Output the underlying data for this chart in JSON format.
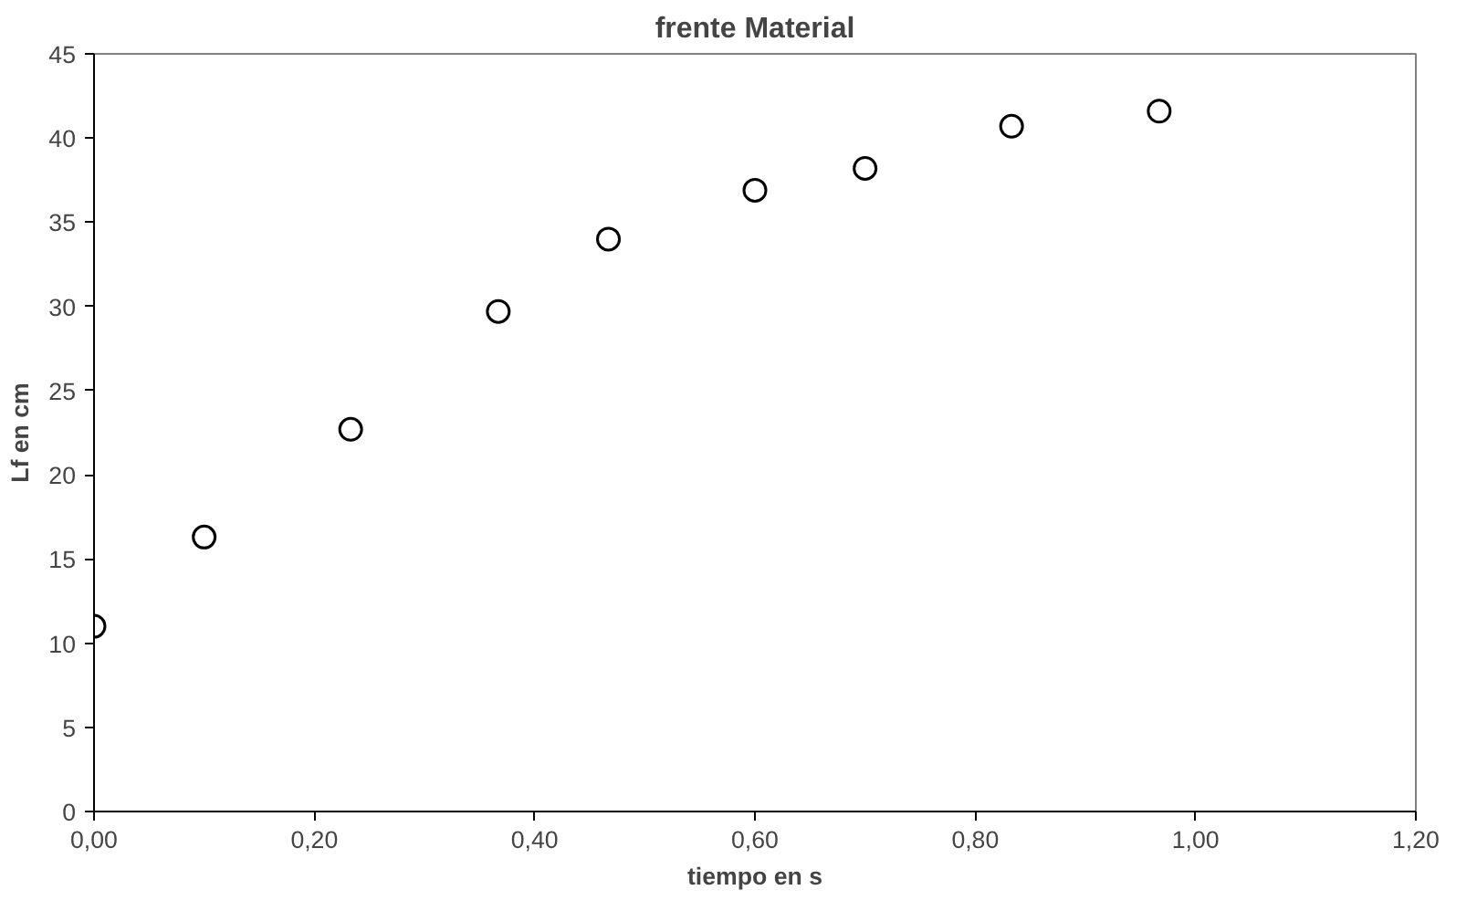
{
  "chart_data": {
    "type": "scatter",
    "title": "frente Material",
    "xlabel": "tiempo en s",
    "ylabel": "Lf en cm",
    "x": [
      0.0,
      0.1,
      0.233,
      0.367,
      0.467,
      0.6,
      0.7,
      0.833,
      0.967
    ],
    "series": [
      {
        "color": "#000000",
        "values": [
          11.0,
          16.3,
          22.7,
          29.7,
          34.0,
          36.9,
          38.2,
          40.7,
          41.6
        ]
      }
    ],
    "marker": "circle",
    "grid": false,
    "xlim": [
      0,
      1.2
    ],
    "ylim": [
      0,
      45
    ],
    "xticks": [
      {
        "value": 0,
        "label": "0,00"
      },
      {
        "value": 0.2,
        "label": "0,20"
      },
      {
        "value": 0.4,
        "label": "0,40"
      },
      {
        "value": 0.6,
        "label": "0,60"
      },
      {
        "value": 0.8,
        "label": "0,80"
      },
      {
        "value": 1.0,
        "label": "1,00"
      },
      {
        "value": 1.2,
        "label": "1,20"
      }
    ],
    "yticks": [
      0,
      5,
      10,
      15,
      20,
      25,
      30,
      35,
      40,
      45
    ]
  }
}
